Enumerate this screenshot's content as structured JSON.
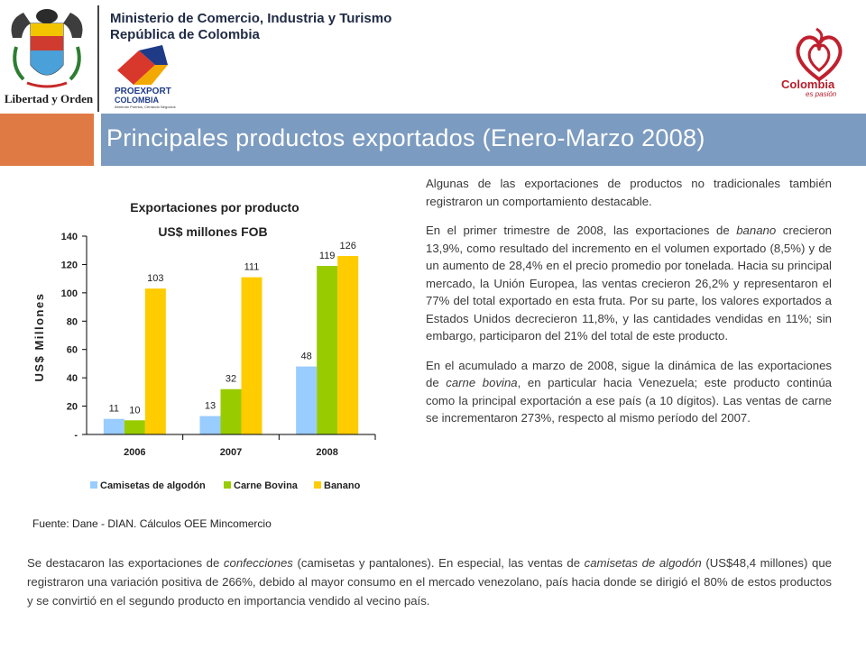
{
  "header": {
    "coat_of_arms_label": "Libertad y Orden",
    "ministry_line1": "Ministerio de Comercio, Industria y Turismo",
    "ministry_line2": "República de Colombia",
    "proexport_name": "PROEXPORT",
    "proexport_sub": "COLOMBIA",
    "proexport_tagline": "Abriendo Puertos, Cerrando Negocios",
    "colombia_word": "Colombia",
    "colombia_tagline": "es pasión"
  },
  "title": "Principales productos exportados (Enero-Marzo 2008)",
  "colors": {
    "title_bar": "#7c9bc0",
    "title_accent": "#e07a45",
    "series_camisetas": "#99ccff",
    "series_carne": "#99cc00",
    "series_banano": "#ffcc00"
  },
  "chart_data": {
    "type": "bar",
    "title": "Exportaciones por producto",
    "subtitle": "US$ millones FOB",
    "ylabel": "US$ Millones",
    "xlabel": "",
    "ylim": [
      0,
      140
    ],
    "yticks": [
      "-",
      "20",
      "40",
      "60",
      "80",
      "100",
      "120",
      "140"
    ],
    "categories": [
      "2006",
      "2007",
      "2008"
    ],
    "series": [
      {
        "name": "Camisetas de algodón",
        "values": [
          11,
          13,
          48
        ],
        "color": "#99ccff"
      },
      {
        "name": "Carne Bovina",
        "values": [
          10,
          32,
          119
        ],
        "color": "#99cc00"
      },
      {
        "name": "Banano",
        "values": [
          103,
          111,
          126
        ],
        "color": "#ffcc00"
      }
    ],
    "legend_position": "bottom",
    "grid": false
  },
  "source": "Fuente: Dane - DIAN. Cálculos OEE Mincomercio",
  "right_text": {
    "p1": "Algunas de las exportaciones de productos no tradicionales también registraron un comportamiento destacable.",
    "p2_a": "En el primer trimestre de 2008, las exportaciones de ",
    "p2_em": "banano",
    "p2_b": " crecieron 13,9%, como resultado del incremento en el volumen exportado (8,5%) y de un aumento de 28,4% en el precio promedio por tonelada. Hacia su principal mercado, la Unión Europea, las ventas crecieron 26,2% y representaron el 77% del total exportado en esta fruta. Por su parte, los valores exportados a Estados Unidos decrecieron 11,8%, y las cantidades vendidas en 11%; sin embargo, participaron del 21% del total de este producto.",
    "p3_a": "En el acumulado a marzo de 2008, sigue la dinámica de las exportaciones de ",
    "p3_em": "carne bovina",
    "p3_b": ", en particular hacia Venezuela; este producto continúa como la principal exportación a ese país (a 10 dígitos). Las ventas de carne se incrementaron 273%, respecto al mismo período del 2007."
  },
  "bottom_text": {
    "a": "Se destacaron las exportaciones de ",
    "em1": "confecciones",
    "b": " (camisetas y pantalones). En especial, las ventas de ",
    "em2": "camisetas de algodón",
    "c": " (US$48,4 millones) que registraron una variación positiva de 266%, debido al mayor consumo en el mercado venezolano, país hacia donde se dirigió el 80% de estos productos y se convirtió en el segundo producto en importancia vendido al vecino país."
  }
}
